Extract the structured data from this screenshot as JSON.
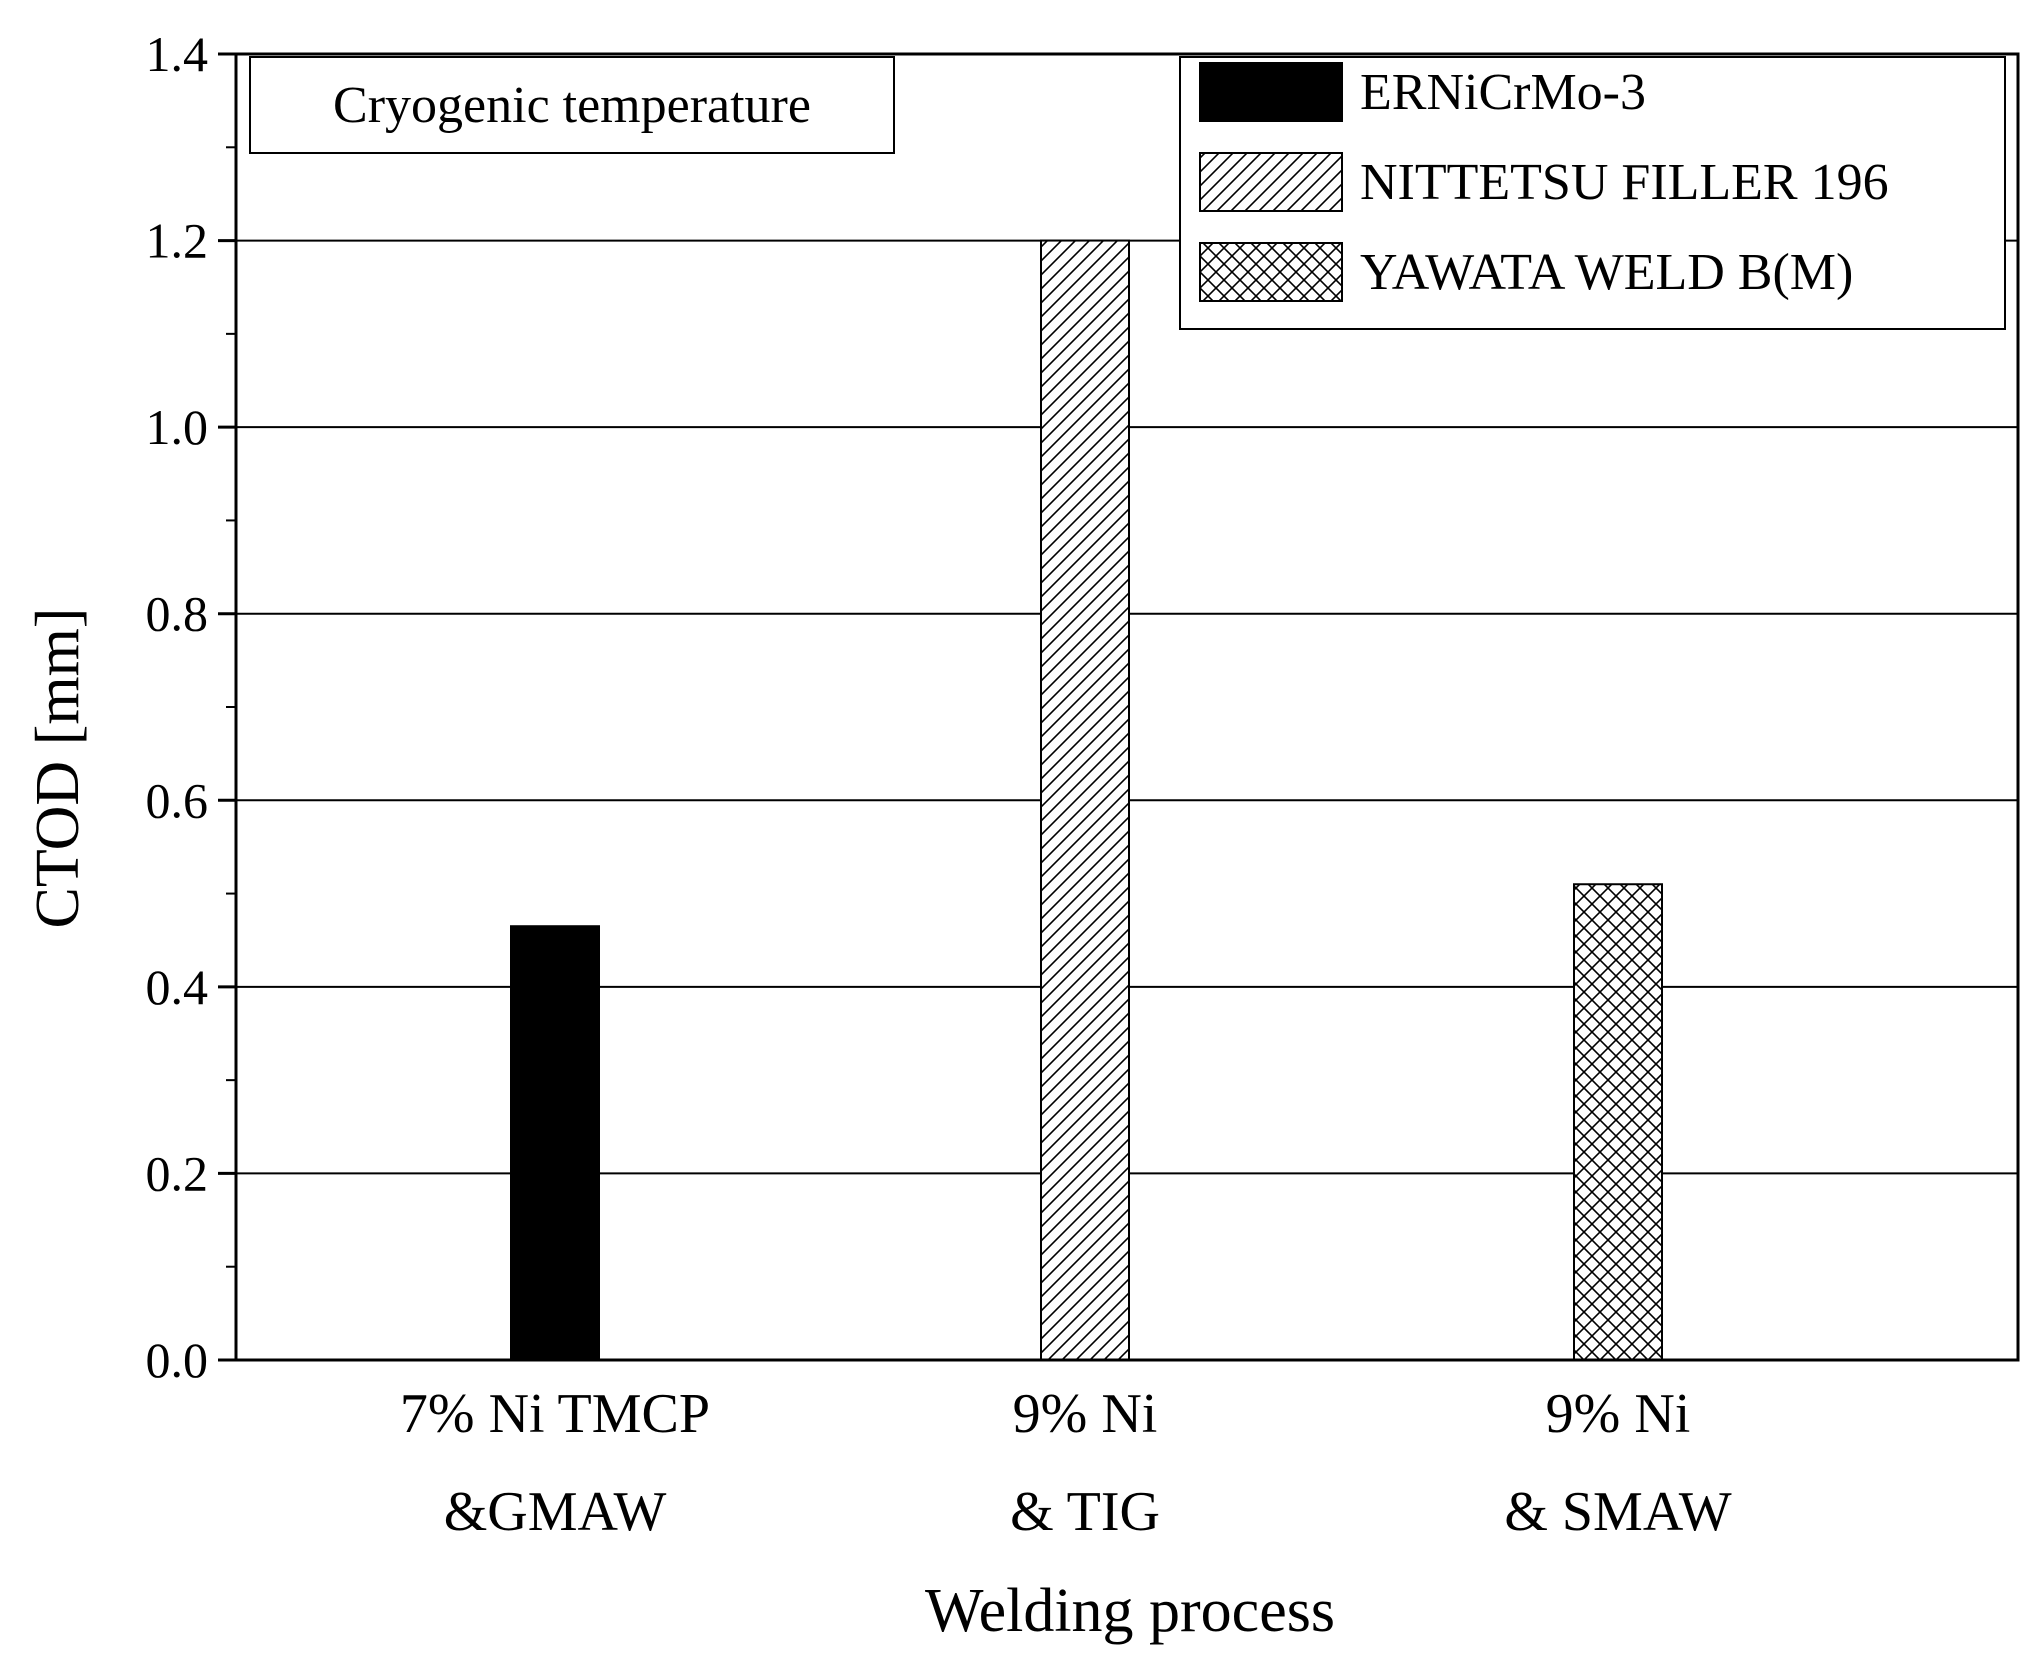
{
  "chart_data": {
    "type": "bar",
    "annotation": "Cryogenic temperature",
    "xlabel": "Welding process",
    "ylabel": "CTOD [mm]",
    "ylim": [
      0.0,
      1.4
    ],
    "yticks": [
      "0.0",
      "0.2",
      "0.4",
      "0.6",
      "0.8",
      "1.0",
      "1.2",
      "1.4"
    ],
    "yticks_values": [
      0.0,
      0.2,
      0.4,
      0.6,
      0.8,
      1.0,
      1.2,
      1.4
    ],
    "grid": true,
    "legend_position": "top-right",
    "categories": [
      {
        "line1": "7% Ni TMCP",
        "line2": "&GMAW"
      },
      {
        "line1": "9% Ni",
        "line2": "& TIG"
      },
      {
        "line1": "9% Ni",
        "line2": "& SMAW"
      }
    ],
    "series": [
      {
        "name": "ERNiCrMo-3",
        "fill": "solid",
        "color": "#000000",
        "category_index": 0,
        "value": 0.465
      },
      {
        "name": "NITTETSU FILLER 196",
        "fill": "diagonal-hatch",
        "color": "#000000",
        "category_index": 1,
        "value": 1.2
      },
      {
        "name": "YAWATA WELD B(M)",
        "fill": "cross-hatch",
        "color": "#000000",
        "category_index": 2,
        "value": 0.51
      }
    ]
  }
}
